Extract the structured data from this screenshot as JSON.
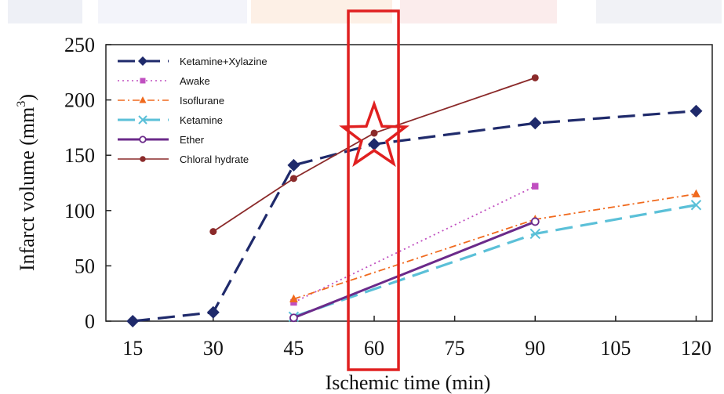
{
  "chart_data": {
    "type": "line",
    "title": "",
    "xlabel": "Ischemic time (min)",
    "ylabel": "Infarct volume (mm³)",
    "ylabel_main": "Infarct volume (mm",
    "ylabel_sup": "3",
    "ylabel_close": ")",
    "x_ticks": [
      15,
      30,
      45,
      60,
      75,
      90,
      105,
      120
    ],
    "y_ticks": [
      0,
      50,
      100,
      150,
      200,
      250
    ],
    "xlim": [
      10,
      123
    ],
    "ylim": [
      0,
      250
    ],
    "grid": false,
    "legend_position": "top-left",
    "series": [
      {
        "name": "Ketamine+Xylazine",
        "color": "#1f2a6b",
        "marker": "diamond",
        "dash": "long-dash",
        "points": [
          [
            15,
            0
          ],
          [
            30,
            8
          ],
          [
            45,
            141
          ],
          [
            60,
            160
          ],
          [
            90,
            179
          ],
          [
            120,
            190
          ]
        ]
      },
      {
        "name": "Awake",
        "color": "#c04fc0",
        "marker": "square",
        "dash": "dotted",
        "points": [
          [
            45,
            17
          ],
          [
            90,
            122
          ]
        ]
      },
      {
        "name": "Isoflurane",
        "color": "#f06a1e",
        "marker": "triangle",
        "dash": "dash-dot",
        "points": [
          [
            45,
            20
          ],
          [
            90,
            92
          ],
          [
            120,
            115
          ]
        ]
      },
      {
        "name": "Ketamine",
        "color": "#5bc0d8",
        "marker": "x",
        "dash": "long-dash",
        "points": [
          [
            45,
            4
          ],
          [
            90,
            79
          ],
          [
            120,
            105
          ]
        ]
      },
      {
        "name": "Ether",
        "color": "#6b2a8a",
        "marker": "circle-open",
        "dash": "solid",
        "points": [
          [
            45,
            3
          ],
          [
            90,
            90
          ]
        ]
      },
      {
        "name": "Chloral hydrate",
        "color": "#8b2a2a",
        "marker": "circle",
        "dash": "solid",
        "points": [
          [
            30,
            81
          ],
          [
            45,
            129
          ],
          [
            60,
            170
          ],
          [
            90,
            220
          ]
        ]
      }
    ],
    "annotations": {
      "highlight_x": 60,
      "highlight_color": "#e02020",
      "star_at": [
        60,
        170
      ]
    }
  }
}
